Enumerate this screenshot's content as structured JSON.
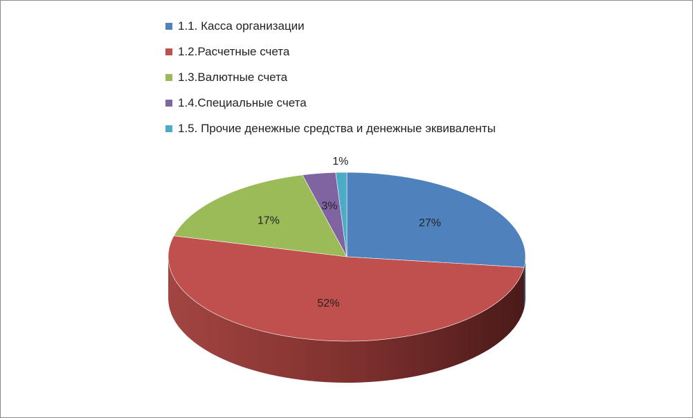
{
  "chart_data": {
    "type": "pie",
    "title": "",
    "legend_position": "top",
    "categories": [
      "1.1. Касса организации",
      "1.2.Расчетные счета",
      "1.3.Валютные счета",
      "1.4.Специальные счета",
      "1.5. Прочие денежные средства и денежные эквиваленты"
    ],
    "values": [
      27,
      52,
      17,
      3,
      1
    ],
    "data_labels": [
      "27%",
      "52%",
      "17%",
      "3%",
      "1%"
    ],
    "colors": [
      "#4f81bd",
      "#c0504d",
      "#9bbb59",
      "#8064a2",
      "#4bacc6"
    ]
  }
}
